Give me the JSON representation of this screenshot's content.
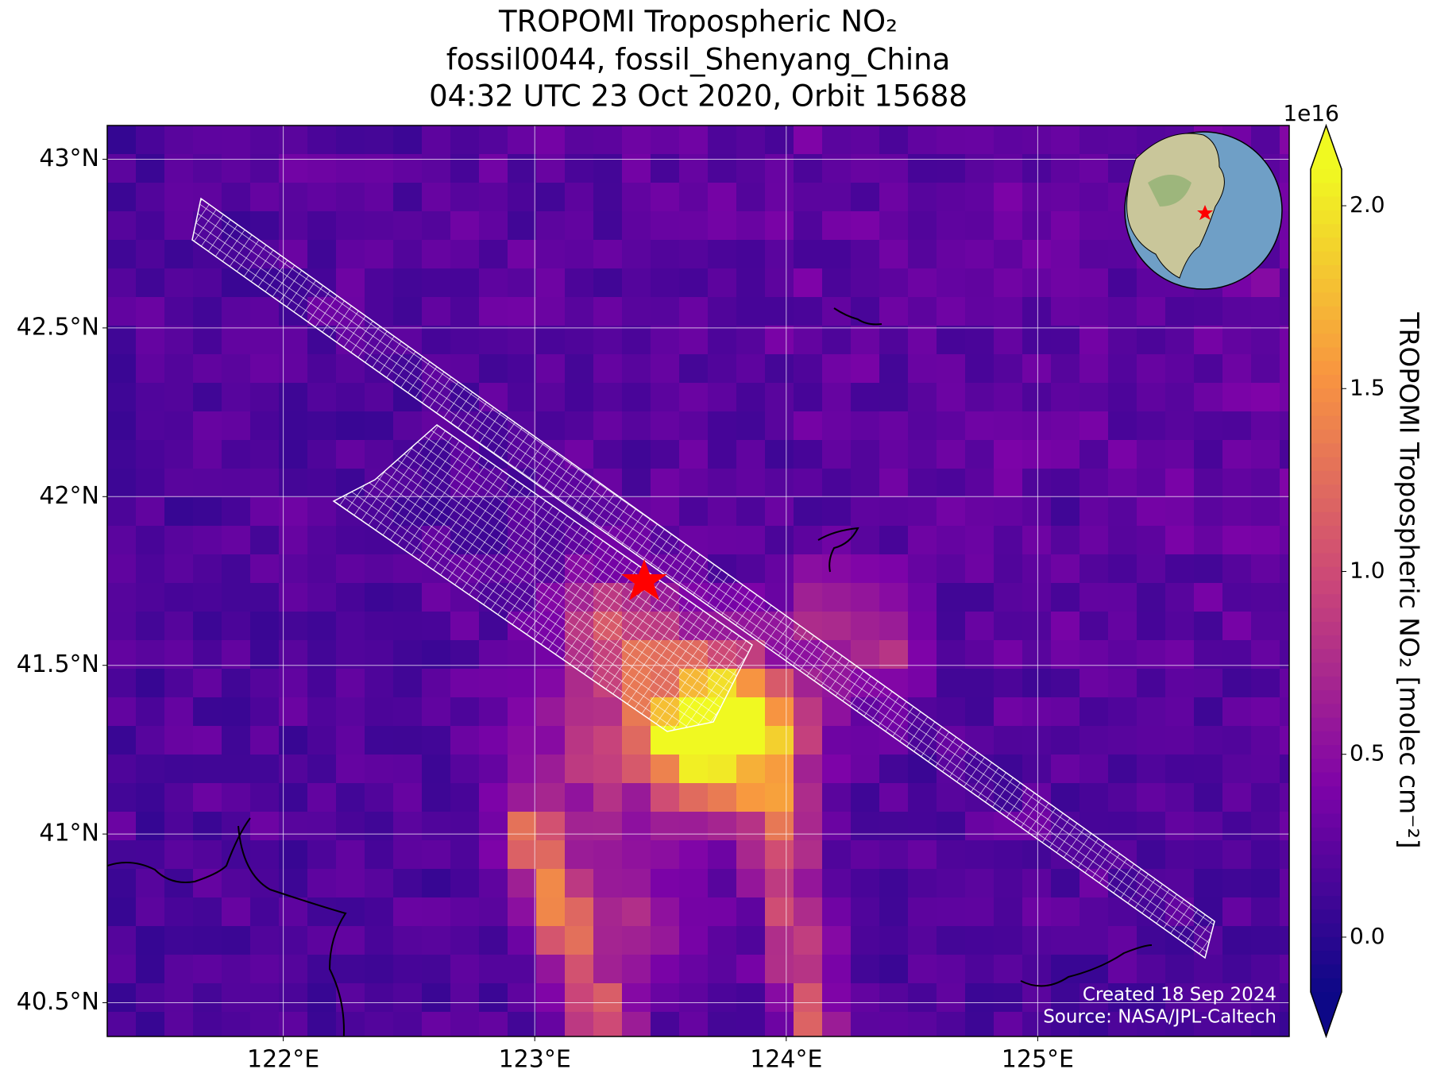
{
  "chart_data": {
    "type": "heatmap-map",
    "title": [
      "TROPOMI Tropospheric NO₂",
      "fossil0044, fossil_Shenyang_China",
      "04:32 UTC 23 Oct 2020, Orbit 15688"
    ],
    "xlim": [
      121.3,
      126.0
    ],
    "xticks": [
      {
        "value": 122,
        "label": "122°E"
      },
      {
        "value": 123,
        "label": "123°E"
      },
      {
        "value": 124,
        "label": "124°E"
      },
      {
        "value": 125,
        "label": "125°E"
      }
    ],
    "ylim": [
      40.4,
      43.1
    ],
    "yticks": [
      {
        "value": 40.5,
        "label": "40.5°N"
      },
      {
        "value": 41,
        "label": "41°N"
      },
      {
        "value": 41.5,
        "label": "41.5°N"
      },
      {
        "value": 42,
        "label": "42°N"
      },
      {
        "value": 42.5,
        "label": "42.5°N"
      },
      {
        "value": 43,
        "label": "43°N"
      }
    ],
    "grid": true,
    "colorbar": {
      "label": "TROPOMI Tropospheric NO₂ [molec cm⁻²]",
      "offset_label": "1e16",
      "colormap": "plasma",
      "extend": "both",
      "lim": [
        -0.15,
        2.1
      ],
      "ticks": [
        {
          "value": 0,
          "label": "0.0"
        },
        {
          "value": 0.5,
          "label": "0.5"
        },
        {
          "value": 1,
          "label": "1.0"
        },
        {
          "value": 1.5,
          "label": "1.5"
        },
        {
          "value": 2,
          "label": "2.0"
        }
      ]
    },
    "annotations": [
      "Created 18 Sep 2024",
      "Source: NASA/JPL-Caltech"
    ]
  }
}
